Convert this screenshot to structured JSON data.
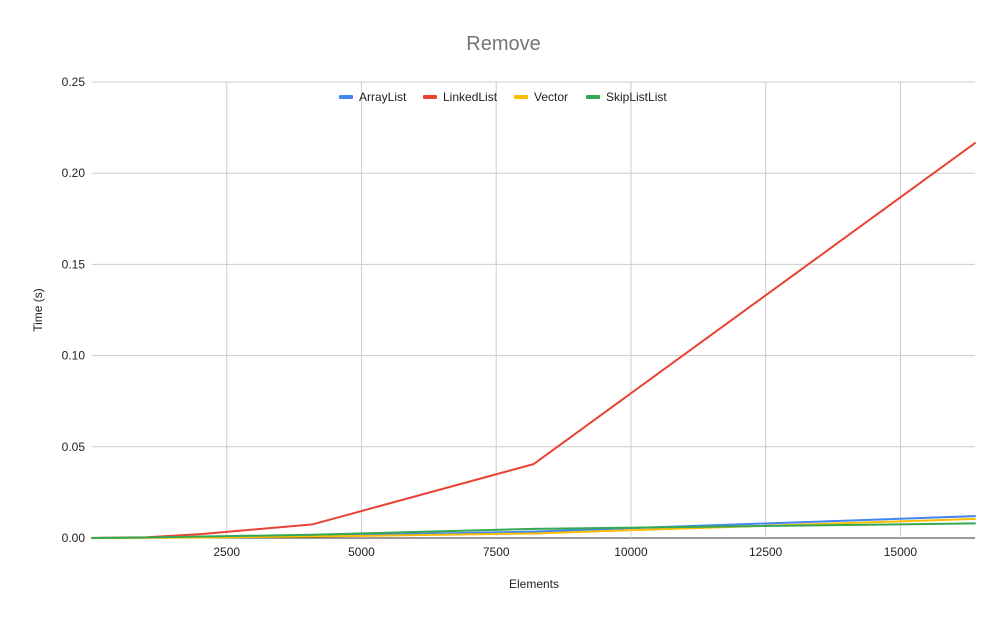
{
  "chart_data": {
    "type": "line",
    "title": "Remove",
    "xlabel": "Elements",
    "ylabel": "Time (s)",
    "xlim": [
      0,
      16384
    ],
    "ylim": [
      0,
      0.25
    ],
    "x_ticks": [
      2500,
      5000,
      7500,
      10000,
      12500,
      15000
    ],
    "x_tick_labels": [
      "2500",
      "5000",
      "7500",
      "10000",
      "12500",
      "15000"
    ],
    "y_ticks": [
      0,
      0.05,
      0.1,
      0.15,
      0.2,
      0.25
    ],
    "y_tick_labels": [
      "0.00",
      "0.05",
      "0.10",
      "0.15",
      "0.20",
      "0.25"
    ],
    "grid": true,
    "legend_position": "top",
    "x": [
      1,
      1024,
      2048,
      4096,
      8192,
      16384
    ],
    "series": [
      {
        "name": "ArrayList",
        "color": "#4285F4",
        "values": [
          0,
          0.0002,
          0.0005,
          0.0012,
          0.0035,
          0.012
        ]
      },
      {
        "name": "LinkedList",
        "color": "#EA4335",
        "values": [
          0,
          0.0004,
          0.0022,
          0.0075,
          0.0405,
          0.2165
        ]
      },
      {
        "name": "Vector",
        "color": "#FBBC04",
        "values": [
          0,
          0.0001,
          0.0003,
          0.0008,
          0.0025,
          0.0105
        ]
      },
      {
        "name": "SkipListList",
        "color": "#34A853",
        "values": [
          0,
          0.0003,
          0.0008,
          0.0018,
          0.005,
          0.008
        ]
      }
    ]
  }
}
